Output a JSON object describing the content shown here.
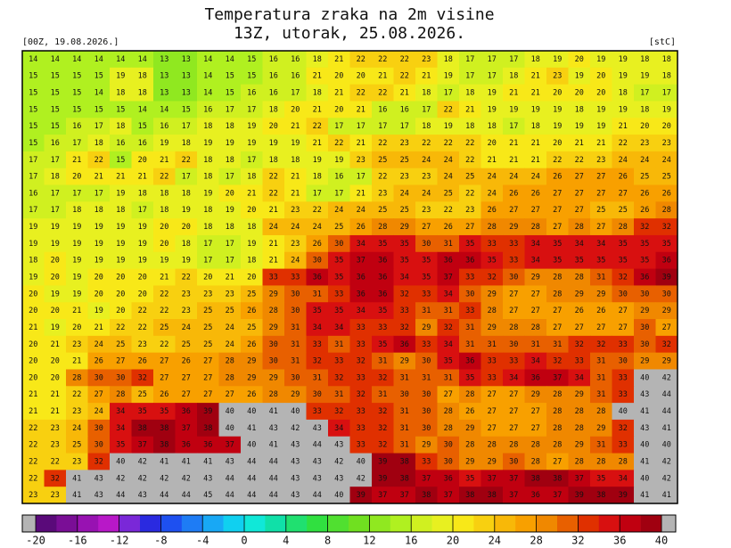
{
  "header": {
    "title": "Temperatura zraka na 2m visine",
    "subtitle": "13Z, utorak, 25.08.2026.",
    "run": "[00Z, 19.08.2026.]",
    "unit": "[stC]"
  },
  "grid": {
    "rows": [
      [
        14,
        14,
        14,
        14,
        14,
        14,
        13,
        13,
        14,
        14,
        15,
        16,
        16,
        18,
        21,
        22,
        22,
        22,
        23,
        18,
        17,
        17,
        17,
        18,
        19,
        20,
        19,
        19,
        18,
        18
      ],
      [
        15,
        15,
        15,
        15,
        19,
        18,
        13,
        13,
        14,
        15,
        15,
        16,
        16,
        21,
        20,
        20,
        21,
        22,
        21,
        19,
        17,
        17,
        18,
        21,
        23,
        19,
        20,
        19,
        19,
        18
      ],
      [
        15,
        15,
        15,
        14,
        18,
        18,
        13,
        13,
        14,
        15,
        16,
        16,
        17,
        18,
        21,
        22,
        22,
        21,
        18,
        17,
        18,
        19,
        21,
        21,
        20,
        20,
        20,
        18,
        17,
        17
      ],
      [
        15,
        15,
        15,
        15,
        15,
        14,
        14,
        15,
        16,
        17,
        17,
        18,
        20,
        21,
        20,
        21,
        16,
        16,
        17,
        22,
        21,
        19,
        19,
        19,
        19,
        18,
        19,
        19,
        18,
        19
      ],
      [
        15,
        15,
        16,
        17,
        18,
        15,
        16,
        17,
        18,
        18,
        19,
        20,
        21,
        22,
        17,
        17,
        17,
        17,
        18,
        19,
        18,
        18,
        17,
        18,
        19,
        19,
        19,
        21,
        20,
        20
      ],
      [
        15,
        16,
        17,
        18,
        16,
        16,
        19,
        18,
        19,
        19,
        19,
        19,
        19,
        21,
        22,
        21,
        22,
        23,
        22,
        22,
        22,
        20,
        21,
        21,
        20,
        21,
        21,
        22,
        23,
        23
      ],
      [
        17,
        17,
        21,
        22,
        15,
        20,
        21,
        22,
        18,
        18,
        17,
        18,
        18,
        19,
        19,
        23,
        25,
        25,
        24,
        24,
        22,
        21,
        21,
        21,
        22,
        22,
        23,
        24,
        24,
        24
      ],
      [
        17,
        18,
        20,
        21,
        21,
        21,
        22,
        17,
        18,
        17,
        18,
        22,
        21,
        18,
        16,
        17,
        22,
        23,
        23,
        24,
        25,
        24,
        24,
        24,
        26,
        27,
        27,
        26,
        25,
        25
      ],
      [
        16,
        17,
        17,
        17,
        19,
        18,
        18,
        18,
        19,
        20,
        21,
        22,
        21,
        17,
        17,
        21,
        23,
        24,
        24,
        25,
        22,
        24,
        26,
        26,
        27,
        27,
        27,
        27,
        26,
        26
      ],
      [
        17,
        17,
        18,
        18,
        18,
        17,
        18,
        19,
        18,
        19,
        20,
        21,
        23,
        22,
        24,
        24,
        25,
        25,
        23,
        22,
        23,
        26,
        27,
        27,
        27,
        27,
        25,
        25,
        26,
        28
      ],
      [
        19,
        19,
        19,
        19,
        19,
        19,
        20,
        20,
        18,
        18,
        18,
        24,
        24,
        24,
        25,
        26,
        28,
        29,
        27,
        26,
        27,
        28,
        29,
        28,
        27,
        28,
        27,
        28,
        32,
        32
      ],
      [
        19,
        19,
        19,
        19,
        19,
        19,
        20,
        18,
        17,
        17,
        19,
        21,
        23,
        26,
        30,
        34,
        35,
        35,
        30,
        31,
        35,
        33,
        33,
        34,
        35,
        34,
        34,
        35,
        35,
        35
      ],
      [
        18,
        20,
        19,
        19,
        19,
        19,
        19,
        19,
        17,
        17,
        18,
        21,
        24,
        30,
        35,
        37,
        36,
        35,
        35,
        36,
        36,
        35,
        33,
        34,
        35,
        35,
        35,
        35,
        35,
        36
      ],
      [
        19,
        20,
        19,
        20,
        20,
        20,
        21,
        22,
        20,
        21,
        20,
        33,
        33,
        36,
        35,
        36,
        36,
        34,
        35,
        37,
        33,
        32,
        30,
        29,
        28,
        28,
        31,
        32,
        36,
        39
      ],
      [
        20,
        19,
        19,
        20,
        20,
        20,
        22,
        23,
        23,
        23,
        25,
        29,
        30,
        31,
        33,
        36,
        36,
        32,
        33,
        34,
        30,
        29,
        27,
        27,
        28,
        29,
        29,
        30,
        30,
        30
      ],
      [
        20,
        20,
        21,
        19,
        20,
        22,
        22,
        23,
        25,
        25,
        26,
        28,
        30,
        35,
        35,
        34,
        35,
        33,
        31,
        31,
        33,
        28,
        27,
        27,
        27,
        26,
        26,
        27,
        29,
        29
      ],
      [
        21,
        19,
        20,
        21,
        22,
        22,
        25,
        24,
        25,
        24,
        25,
        29,
        31,
        34,
        34,
        33,
        33,
        32,
        29,
        32,
        31,
        29,
        28,
        28,
        27,
        27,
        27,
        27,
        30,
        27
      ],
      [
        20,
        21,
        23,
        24,
        25,
        23,
        22,
        25,
        25,
        24,
        26,
        30,
        31,
        33,
        31,
        33,
        35,
        36,
        33,
        34,
        31,
        31,
        30,
        31,
        31,
        32,
        32,
        33,
        30,
        32
      ],
      [
        20,
        20,
        21,
        26,
        27,
        26,
        27,
        26,
        27,
        28,
        29,
        30,
        31,
        32,
        33,
        32,
        31,
        29,
        30,
        35,
        36,
        33,
        33,
        34,
        32,
        33,
        31,
        30,
        29,
        29
      ],
      [
        20,
        20,
        28,
        30,
        30,
        32,
        27,
        27,
        27,
        28,
        29,
        29,
        30,
        31,
        32,
        33,
        32,
        31,
        31,
        31,
        35,
        33,
        34,
        36,
        37,
        34,
        31,
        33,
        40,
        42
      ],
      [
        21,
        21,
        22,
        27,
        28,
        25,
        26,
        27,
        27,
        27,
        26,
        28,
        29,
        30,
        31,
        32,
        31,
        30,
        30,
        27,
        28,
        27,
        27,
        29,
        28,
        29,
        31,
        33,
        43,
        44
      ],
      [
        21,
        21,
        23,
        24,
        34,
        35,
        35,
        36,
        39,
        40,
        40,
        41,
        40,
        33,
        32,
        33,
        32,
        31,
        30,
        28,
        26,
        27,
        27,
        27,
        28,
        28,
        28,
        40,
        41,
        44
      ],
      [
        22,
        23,
        24,
        30,
        34,
        38,
        38,
        37,
        38,
        40,
        41,
        43,
        42,
        43,
        34,
        33,
        32,
        31,
        30,
        28,
        29,
        27,
        27,
        27,
        28,
        28,
        29,
        32,
        43,
        41
      ],
      [
        22,
        23,
        25,
        30,
        35,
        37,
        38,
        36,
        36,
        37,
        40,
        41,
        43,
        44,
        43,
        33,
        32,
        31,
        29,
        30,
        28,
        28,
        28,
        28,
        28,
        29,
        31,
        33,
        40,
        40
      ],
      [
        22,
        22,
        23,
        32,
        40,
        42,
        41,
        41,
        41,
        43,
        44,
        44,
        43,
        43,
        42,
        40,
        39,
        38,
        33,
        30,
        29,
        29,
        30,
        28,
        27,
        28,
        28,
        28,
        41,
        42
      ],
      [
        22,
        32,
        41,
        43,
        42,
        42,
        42,
        42,
        43,
        44,
        44,
        44,
        43,
        43,
        43,
        42,
        39,
        38,
        37,
        36,
        35,
        37,
        37,
        38,
        38,
        37,
        35,
        34,
        40,
        42
      ],
      [
        23,
        23,
        41,
        43,
        44,
        43,
        44,
        44,
        45,
        44,
        44,
        44,
        43,
        44,
        40,
        39,
        37,
        37,
        38,
        37,
        38,
        38,
        37,
        36,
        37,
        39,
        38,
        39,
        41,
        41
      ]
    ]
  },
  "colorbar": {
    "lim": [
      -20,
      40
    ],
    "ticks": [
      -20,
      -16,
      -12,
      -8,
      -4,
      0,
      4,
      8,
      12,
      16,
      20,
      24,
      28,
      32,
      36,
      40
    ],
    "under_color": "#b4b4b4",
    "over_color": "#b4b4b4",
    "colors": [
      "#5a0a7a",
      "#7a0e96",
      "#9812b2",
      "#b818c8",
      "#7a28d8",
      "#2a2ae0",
      "#1e50f0",
      "#1e7cf5",
      "#18a8f5",
      "#10d0f0",
      "#10e8d8",
      "#10e0a8",
      "#20e070",
      "#30e040",
      "#50e030",
      "#70e020",
      "#90e820",
      "#b0f020",
      "#d0f020",
      "#e8f020",
      "#f8e818",
      "#f8d010",
      "#f8b808",
      "#f8a000",
      "#f08800",
      "#e86000",
      "#e03000",
      "#d81010",
      "#c00010",
      "#a00010"
    ]
  }
}
